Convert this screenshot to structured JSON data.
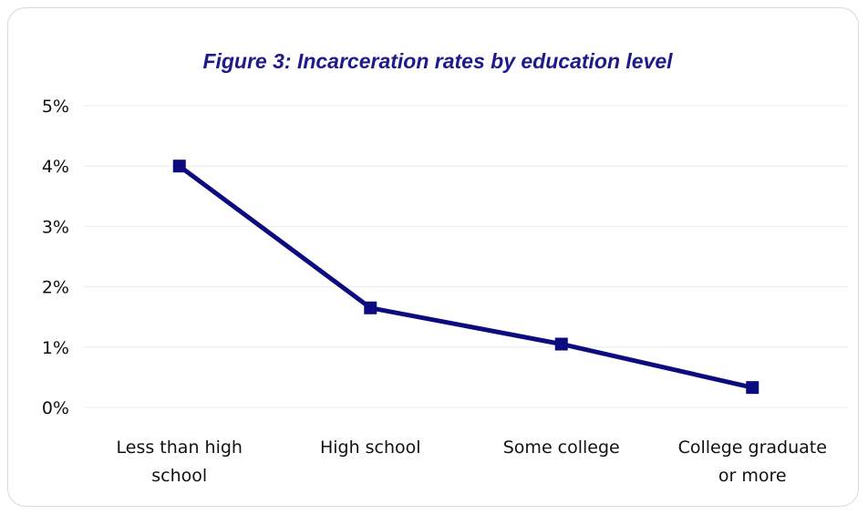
{
  "chart_data": {
    "type": "line",
    "title": "Figure 3: Incarceration rates by education level",
    "categories": [
      [
        "Less than high",
        "school"
      ],
      [
        "High school"
      ],
      [
        "Some college"
      ],
      [
        "College graduate",
        "or more"
      ]
    ],
    "series": [
      {
        "values": [
          4.0,
          1.65,
          1.05,
          0.33
        ]
      }
    ],
    "yticks": [
      "0%",
      "1%",
      "2%",
      "3%",
      "4%",
      "5%"
    ],
    "ylim": [
      0,
      5
    ],
    "grid": true,
    "legend": "none",
    "colors": {
      "line": "#0c0c80",
      "title": "#1f1a8c",
      "grid": "#ececec"
    }
  }
}
